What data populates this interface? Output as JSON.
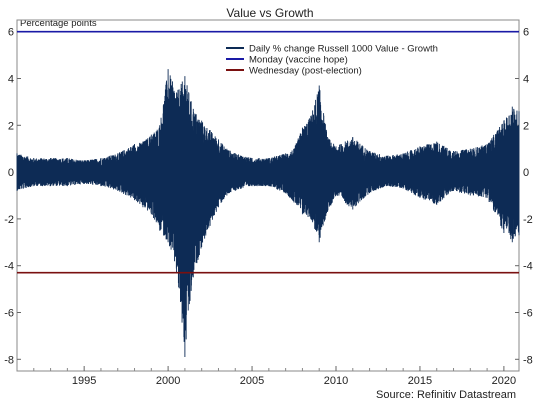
{
  "chart_data": {
    "type": "line",
    "title": "Value vs Growth",
    "ylabel": "Percentage points",
    "source": "Source: Refinitiv Datastream",
    "x_range": [
      1991.0,
      2020.9
    ],
    "ylim": [
      -8.5,
      6.5
    ],
    "y_ticks": [
      6,
      4,
      2,
      0,
      -2,
      -4,
      -6,
      -8
    ],
    "x_ticks": [
      1995,
      2000,
      2005,
      2010,
      2015,
      2020
    ],
    "grid": false,
    "legend_position": "top-right",
    "series": [
      {
        "name": "Daily % change Russell 1000 Value - Growth",
        "color": "#0d2b55",
        "style": "dense daily oscillation",
        "x": [
          1991.0,
          1992.0,
          1993.0,
          1994.0,
          1995.0,
          1996.0,
          1997.0,
          1998.0,
          1998.5,
          1999.0,
          1999.5,
          2000.0,
          2000.5,
          2001.0,
          2001.5,
          2002.0,
          2002.5,
          2003.0,
          2003.5,
          2004.0,
          2005.0,
          2006.0,
          2007.0,
          2007.5,
          2008.0,
          2008.5,
          2009.0,
          2009.5,
          2010.0,
          2011.0,
          2012.0,
          2013.0,
          2014.0,
          2015.0,
          2016.0,
          2017.0,
          2018.0,
          2019.0,
          2020.0,
          2020.5,
          2020.9
        ],
        "upper": [
          0.8,
          0.6,
          0.6,
          0.6,
          0.5,
          0.6,
          0.8,
          1.2,
          1.3,
          1.6,
          2.0,
          4.4,
          3.4,
          4.1,
          2.7,
          2.2,
          1.8,
          1.4,
          1.0,
          0.8,
          0.6,
          0.6,
          0.8,
          1.0,
          1.9,
          2.4,
          3.7,
          1.5,
          1.1,
          1.5,
          0.9,
          0.7,
          0.8,
          1.1,
          1.3,
          0.9,
          1.0,
          1.2,
          2.2,
          2.8,
          2.6
        ],
        "lower": [
          -0.8,
          -0.6,
          -0.6,
          -0.6,
          -0.5,
          -0.6,
          -0.8,
          -1.2,
          -1.5,
          -1.8,
          -2.5,
          -3.0,
          -4.3,
          -7.9,
          -4.5,
          -3.2,
          -2.3,
          -1.5,
          -1.0,
          -0.8,
          -0.6,
          -0.6,
          -0.9,
          -1.3,
          -1.8,
          -2.0,
          -3.0,
          -1.7,
          -1.0,
          -1.6,
          -0.9,
          -0.6,
          -0.7,
          -1.1,
          -1.4,
          -0.8,
          -1.0,
          -1.1,
          -2.6,
          -3.0,
          -2.7
        ]
      },
      {
        "name": "Monday (vaccine hope)",
        "color": "#1a1aa6",
        "y": 6
      },
      {
        "name": "Wednesday (post-election)",
        "color": "#7a1010",
        "y": -4.3
      }
    ]
  }
}
